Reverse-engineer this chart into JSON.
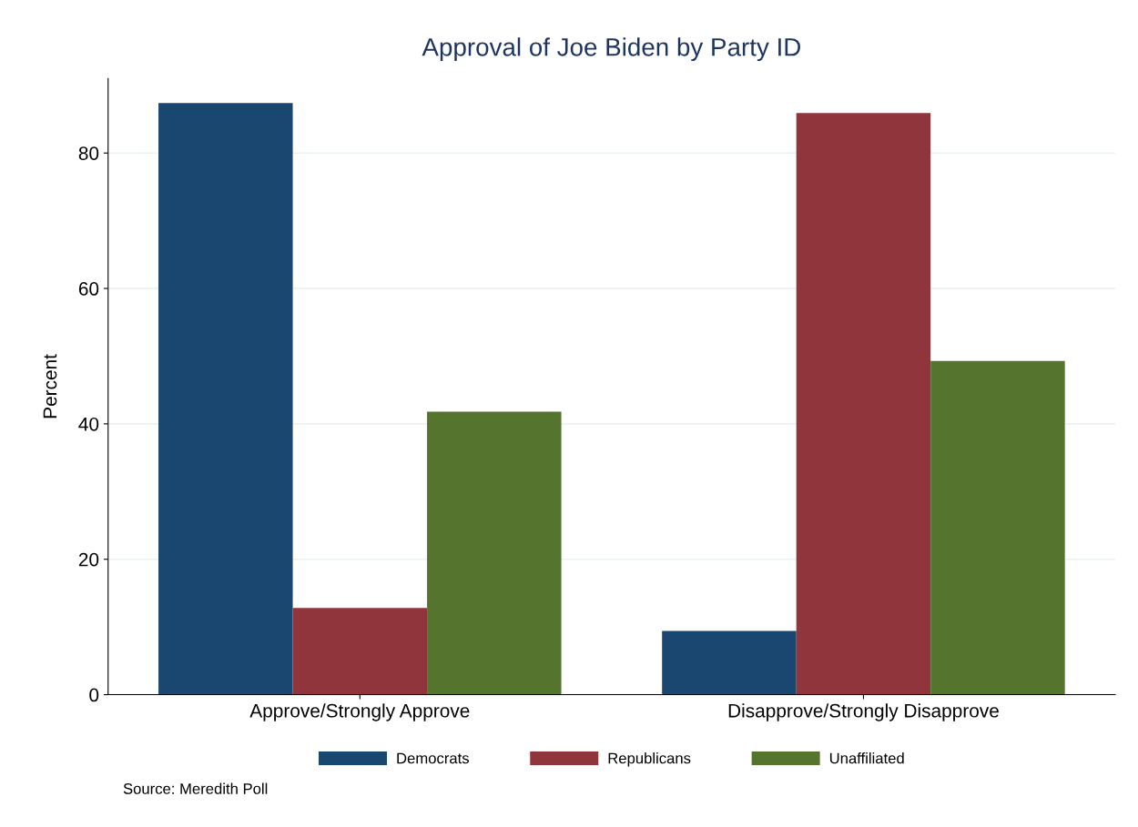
{
  "chart_data": {
    "type": "bar",
    "title": "Approval of Joe Biden by Party ID",
    "ylabel": "Percent",
    "categories": [
      "Approve/Strongly Approve",
      "Disapprove/Strongly Disapprove"
    ],
    "series": [
      {
        "name": "Democrats",
        "color": "#1a476f",
        "values": [
          87.4,
          9.4
        ]
      },
      {
        "name": "Republicans",
        "color": "#90353b",
        "values": [
          12.8,
          85.9
        ]
      },
      {
        "name": "Unaffiliated",
        "color": "#55752f",
        "values": [
          41.8,
          49.3
        ]
      }
    ],
    "ylim": [
      0,
      91
    ],
    "yticks": [
      0,
      20,
      40,
      60,
      80
    ],
    "grid": "y",
    "legend": "bottom",
    "annotations": [
      "Source: Meredith Poll"
    ]
  }
}
